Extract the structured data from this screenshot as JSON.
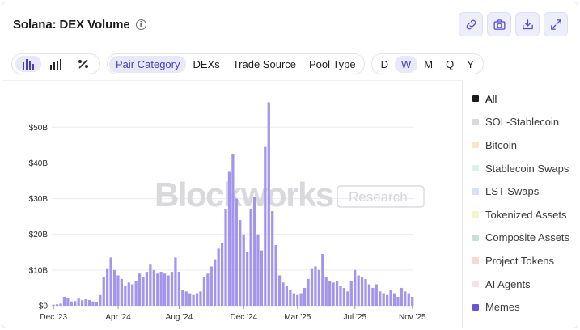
{
  "header": {
    "title": "Solana: DEX Volume"
  },
  "toolbar": {
    "buttons": [
      {
        "name": "link-button",
        "icon": "link-icon"
      },
      {
        "name": "screenshot-button",
        "icon": "camera-icon"
      },
      {
        "name": "download-button",
        "icon": "download-icon"
      },
      {
        "name": "expand-button",
        "icon": "expand-icon"
      }
    ]
  },
  "chart_types": [
    {
      "name": "bar-chart",
      "active": true
    },
    {
      "name": "stacked-bar-chart",
      "active": false
    },
    {
      "name": "percent-chart",
      "active": false
    }
  ],
  "tabs": [
    {
      "label": "Pair Category",
      "active": true
    },
    {
      "label": "DEXs",
      "active": false
    },
    {
      "label": "Trade Source",
      "active": false
    },
    {
      "label": "Pool Type",
      "active": false
    }
  ],
  "periods": [
    {
      "label": "D",
      "active": false
    },
    {
      "label": "W",
      "active": true
    },
    {
      "label": "M",
      "active": false
    },
    {
      "label": "Q",
      "active": false
    },
    {
      "label": "Y",
      "active": false
    }
  ],
  "legend": [
    {
      "label": "All",
      "color": "#1a1a1a"
    },
    {
      "label": "SOL-Stablecoin",
      "color": "#d9d9d9"
    },
    {
      "label": "Bitcoin",
      "color": "#f7e6c8"
    },
    {
      "label": "Stablecoin Swaps",
      "color": "#d8f2ec"
    },
    {
      "label": "LST Swaps",
      "color": "#d6e0f7"
    },
    {
      "label": "Tokenized Assets",
      "color": "#f3f4cc"
    },
    {
      "label": "Composite Assets",
      "color": "#c9dfd2"
    },
    {
      "label": "Project Tokens",
      "color": "#f7d9d0"
    },
    {
      "label": "AI Agents",
      "color": "#f9e1ea"
    },
    {
      "label": "Memes",
      "color": "#6a55d8"
    }
  ],
  "watermark": {
    "main": "Blockworks",
    "sub": "Research"
  },
  "chart_data": {
    "type": "bar",
    "series": [
      {
        "name": "Memes",
        "color": "#a394ee",
        "values": [
          0.3,
          0.4,
          0.6,
          2.5,
          2.2,
          1.2,
          1.3,
          2.0,
          1.5,
          1.8,
          1.6,
          1.2,
          1.1,
          3.0,
          8.0,
          10.5,
          13.5,
          10.0,
          8.5,
          7.5,
          5.5,
          6.5,
          6.0,
          7.0,
          9.0,
          8.0,
          9.5,
          11.5,
          10.0,
          9.0,
          9.5,
          9.0,
          8.5,
          9.5,
          13.5,
          9.5,
          4.5,
          4.0,
          3.5,
          3.0,
          3.5,
          4.0,
          8.0,
          9.0,
          11.0,
          13.0,
          16.0,
          17.5,
          27.0,
          37.5,
          42.5,
          30.0,
          24.0,
          20.0,
          15.0,
          27.0,
          30.5,
          20.0,
          15.5,
          44.5,
          57.0,
          26.5,
          17.0,
          8.5,
          6.5,
          5.5,
          4.5,
          3.5,
          3.0,
          3.5,
          5.0,
          7.5,
          10.5,
          11.0,
          10.0,
          14.5,
          8.0,
          7.0,
          6.5,
          7.0,
          5.5,
          5.0,
          4.0,
          7.0,
          10.0,
          8.5,
          8.0,
          7.5,
          6.0,
          5.0,
          6.0,
          4.0,
          3.5,
          3.0,
          4.5,
          3.5,
          2.5,
          5.0,
          4.0,
          3.5,
          2.5
        ]
      }
    ],
    "x_labels": [
      "Dec '23",
      "Apr '24",
      "Aug '24",
      "Dec '24",
      "Mar '25",
      "Jul '25",
      "Nov '25"
    ],
    "x_label_index": [
      0,
      18,
      35,
      53,
      68,
      84,
      100
    ],
    "y_ticks": [
      0,
      10,
      20,
      30,
      40,
      50
    ],
    "y_tick_labels": [
      "$0",
      "$10B",
      "$20B",
      "$30B",
      "$40B",
      "$50B"
    ],
    "ylim": [
      0,
      58
    ],
    "grid": true
  }
}
